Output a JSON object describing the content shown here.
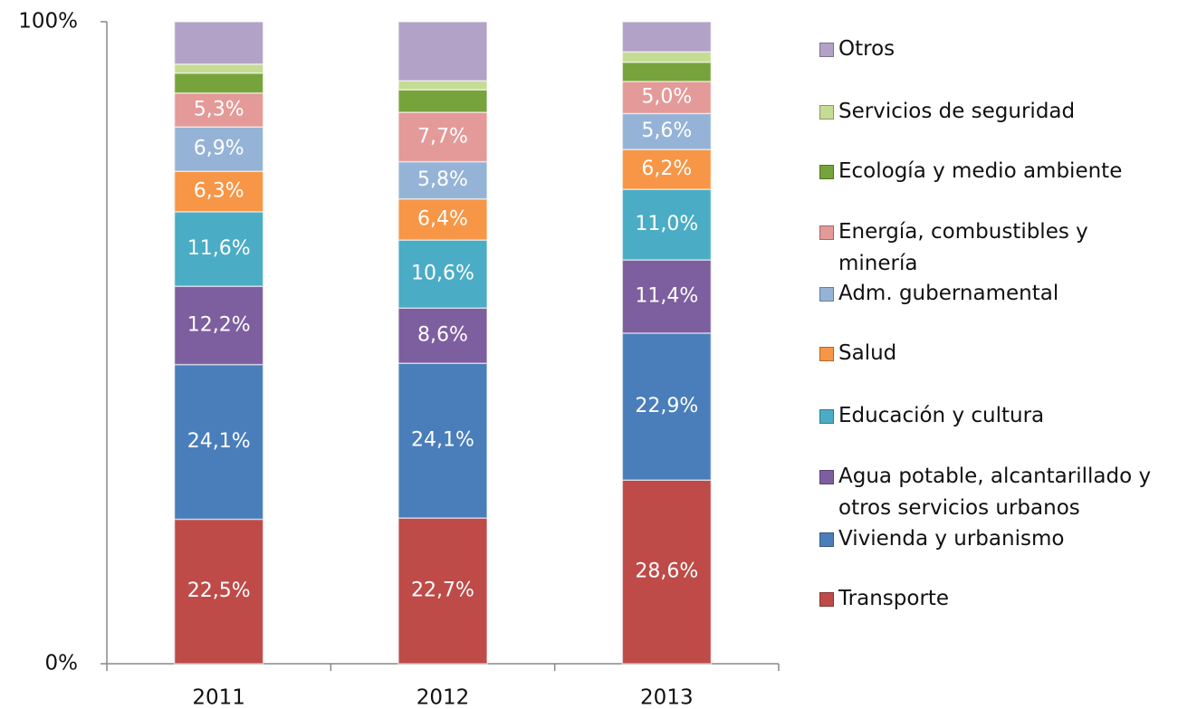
{
  "chart_data": {
    "type": "stacked-bar",
    "categories": [
      "2011",
      "2012",
      "2013"
    ],
    "ylim": [
      0,
      100
    ],
    "yticks": [
      {
        "value": 0,
        "label": "0%"
      },
      {
        "value": 100,
        "label": "100%"
      }
    ],
    "grid": false,
    "legend": "right",
    "series": [
      {
        "name": "Transporte",
        "color": "#be4b48",
        "values": [
          22.5,
          22.7,
          28.6
        ],
        "value_labels": [
          "22,5%",
          "22,7%",
          "28,6%"
        ]
      },
      {
        "name": "Vivienda y urbanismo",
        "color": "#4a7ebb",
        "values": [
          24.1,
          24.1,
          22.9
        ],
        "value_labels": [
          "24,1%",
          "24,1%",
          "22,9%"
        ]
      },
      {
        "name": "Agua potable, alcantarillado y otros servicios urbanos",
        "color": "#7d5fa0",
        "values": [
          12.2,
          8.6,
          11.4
        ],
        "value_labels": [
          "12,2%",
          "8,6%",
          "11,4%"
        ]
      },
      {
        "name": "Educación y cultura",
        "color": "#4bacc6",
        "values": [
          11.6,
          10.6,
          11.0
        ],
        "value_labels": [
          "11,6%",
          "10,6%",
          "11,0%"
        ]
      },
      {
        "name": "Salud",
        "color": "#f79646",
        "values": [
          6.3,
          6.4,
          6.2
        ],
        "value_labels": [
          "6,3%",
          "6,4%",
          "6,2%"
        ]
      },
      {
        "name": "Adm. gubernamental",
        "color": "#95b3d7",
        "values": [
          6.9,
          5.8,
          5.6
        ],
        "value_labels": [
          "6,9%",
          "5,8%",
          "5,6%"
        ]
      },
      {
        "name": "Energía, combustibles y minería",
        "color": "#e39a98",
        "values": [
          5.3,
          7.7,
          5.0
        ],
        "value_labels": [
          "5,3%",
          "7,7%",
          "5,0%"
        ]
      },
      {
        "name": "Ecología y medio ambiente",
        "color": "#77a33c",
        "values": [
          3.1,
          3.5,
          3.0
        ]
      },
      {
        "name": "Servicios de seguridad",
        "color": "#c4dc93",
        "values": [
          1.4,
          1.4,
          1.6
        ]
      },
      {
        "name": "Otros",
        "color": "#b3a2c7",
        "values": [
          6.6,
          9.2,
          4.7
        ]
      }
    ]
  }
}
